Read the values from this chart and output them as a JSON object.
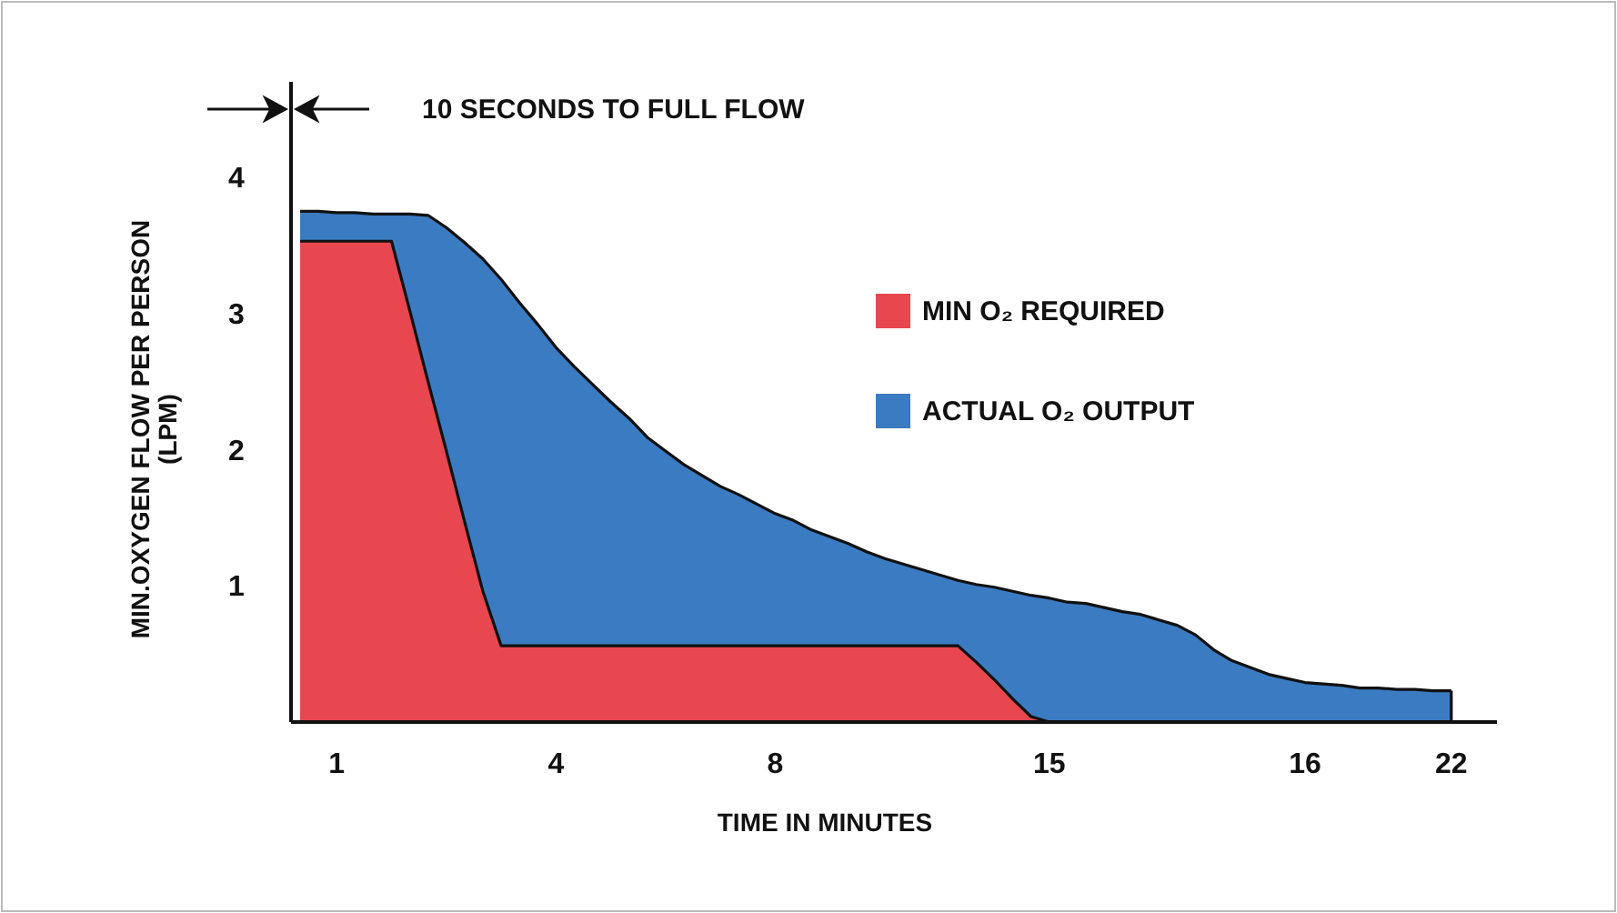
{
  "chart_data": {
    "type": "area",
    "xlabel": "TIME IN MINUTES",
    "ylabel": "MIN.OXYGEN FLOW PER PERSON (LPM)",
    "annotations": [
      "10 SECONDS TO FULL FLOW"
    ],
    "categories": [
      null,
      null,
      "1",
      null,
      null,
      null,
      null,
      null,
      null,
      null,
      null,
      null,
      null,
      null,
      "4",
      null,
      null,
      null,
      null,
      null,
      null,
      null,
      null,
      null,
      null,
      null,
      "8",
      null,
      null,
      null,
      null,
      null,
      null,
      null,
      null,
      null,
      null,
      null,
      null,
      null,
      null,
      "15",
      null,
      null,
      null,
      null,
      null,
      null,
      null,
      null,
      null,
      null,
      null,
      null,
      null,
      "16",
      null,
      null,
      null,
      null,
      null,
      null,
      null,
      "22",
      null,
      null
    ],
    "ylim": [
      0,
      4.7
    ],
    "yticks": [
      1,
      2,
      3,
      4
    ],
    "grid": false,
    "legend": "right",
    "series": [
      {
        "name": "ACTUAL O₂ OUTPUT",
        "color": "#3b7bc2",
        "values": [
          3.75,
          3.75,
          3.74,
          3.74,
          3.73,
          3.73,
          3.73,
          3.72,
          3.63,
          3.52,
          3.4,
          3.25,
          3.08,
          2.92,
          2.75,
          2.61,
          2.48,
          2.35,
          2.23,
          2.09,
          1.99,
          1.89,
          1.81,
          1.73,
          1.67,
          1.6,
          1.53,
          1.48,
          1.41,
          1.36,
          1.31,
          1.25,
          1.2,
          1.16,
          1.12,
          1.08,
          1.04,
          1.01,
          0.99,
          0.96,
          0.93,
          0.91,
          0.88,
          0.87,
          0.84,
          0.81,
          0.79,
          0.75,
          0.71,
          0.64,
          0.53,
          0.45,
          0.4,
          0.35,
          0.32,
          0.29,
          0.28,
          0.27,
          0.25,
          0.25,
          0.24,
          0.24,
          0.23,
          0.23,
          null,
          null
        ]
      },
      {
        "name": "MIN O₂ REQUIRED",
        "color": "#e8474f",
        "values": [
          3.53,
          3.53,
          3.53,
          3.53,
          3.53,
          3.53,
          3.02,
          2.5,
          1.99,
          1.47,
          0.96,
          0.56,
          0.56,
          0.56,
          0.56,
          0.56,
          0.56,
          0.56,
          0.56,
          0.56,
          0.56,
          0.56,
          0.56,
          0.56,
          0.56,
          0.56,
          0.56,
          0.56,
          0.56,
          0.56,
          0.56,
          0.56,
          0.56,
          0.56,
          0.56,
          0.56,
          0.56,
          0.44,
          0.31,
          0.17,
          0.04,
          0,
          null,
          null,
          null,
          null,
          null,
          null,
          null,
          null,
          null,
          null,
          null,
          null,
          null,
          null,
          null,
          null,
          null,
          null,
          null,
          null,
          null,
          null,
          null,
          null
        ]
      }
    ]
  }
}
